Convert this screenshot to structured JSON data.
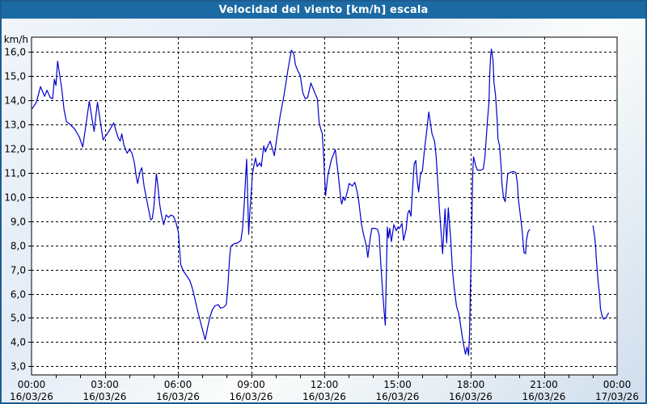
{
  "window": {
    "title": "Velocidad del viento [km/h] escala"
  },
  "colors": {
    "title_bar": "#1b6aa4",
    "outer_border": "#1d5c8f",
    "line": "#0000cd",
    "grid": "#000000",
    "plot_bg": "#ffffff",
    "text": "#000000"
  },
  "chart_data": {
    "type": "line",
    "title": "Velocidad del viento [km/h] escala",
    "ylabel": "km/h",
    "ylim": [
      2.66,
      16.6
    ],
    "grid": "dashed",
    "legend": "none",
    "y_ticks": [
      {
        "value": 16,
        "label": "16,0"
      },
      {
        "value": 15,
        "label": "15,0"
      },
      {
        "value": 14,
        "label": "14,0"
      },
      {
        "value": 13,
        "label": "13,0"
      },
      {
        "value": 12,
        "label": "12,0"
      },
      {
        "value": 11,
        "label": "11,0"
      },
      {
        "value": 10,
        "label": "10,0"
      },
      {
        "value": 9,
        "label": "9,0"
      },
      {
        "value": 8,
        "label": "8,0"
      },
      {
        "value": 7,
        "label": "7,0"
      },
      {
        "value": 6,
        "label": "6,0"
      },
      {
        "value": 5,
        "label": "5,0"
      },
      {
        "value": 4,
        "label": "4,0"
      },
      {
        "value": 3,
        "label": "3,0"
      }
    ],
    "x_axis": {
      "unit": "minutes since 00:00 of first day",
      "range": [
        0,
        1440
      ],
      "gridline_every_minutes": 180,
      "minor_tick_every_minutes": 60,
      "ticks": [
        {
          "t": 0,
          "time": "00:00",
          "date": "16/03/26"
        },
        {
          "t": 180,
          "time": "03:00",
          "date": "16/03/26"
        },
        {
          "t": 360,
          "time": "06:00",
          "date": "16/03/26"
        },
        {
          "t": 540,
          "time": "09:00",
          "date": "16/03/26"
        },
        {
          "t": 720,
          "time": "12:00",
          "date": "16/03/26"
        },
        {
          "t": 900,
          "time": "15:00",
          "date": "16/03/26"
        },
        {
          "t": 1080,
          "time": "18:00",
          "date": "16/03/26"
        },
        {
          "t": 1260,
          "time": "21:00",
          "date": "16/03/26"
        },
        {
          "t": 1440,
          "time": "00:00",
          "date": "17/03/26"
        }
      ]
    },
    "series": [
      {
        "name": "wind-speed-kmh",
        "segments": [
          [
            [
              2,
              13.65
            ],
            [
              12,
              13.9
            ],
            [
              22,
              14.55
            ],
            [
              32,
              14.15
            ],
            [
              38,
              14.4
            ],
            [
              46,
              14.1
            ],
            [
              52,
              14.05
            ],
            [
              56,
              14.85
            ],
            [
              60,
              14.6
            ],
            [
              64,
              15.6
            ],
            [
              70,
              14.95
            ],
            [
              74,
              14.5
            ],
            [
              80,
              13.6
            ],
            [
              86,
              13.1
            ],
            [
              94,
              13.0
            ],
            [
              106,
              12.8
            ],
            [
              118,
              12.45
            ],
            [
              126,
              12.05
            ],
            [
              134,
              13.0
            ],
            [
              142,
              13.95
            ],
            [
              148,
              13.3
            ],
            [
              154,
              12.7
            ],
            [
              158,
              13.3
            ],
            [
              162,
              13.9
            ],
            [
              170,
              13.0
            ],
            [
              176,
              12.35
            ],
            [
              182,
              12.5
            ],
            [
              190,
              12.7
            ],
            [
              202,
              13.05
            ],
            [
              208,
              12.7
            ],
            [
              214,
              12.4
            ],
            [
              218,
              12.3
            ],
            [
              222,
              12.6
            ],
            [
              227,
              12.15
            ],
            [
              235,
              11.8
            ],
            [
              241,
              11.95
            ],
            [
              247,
              11.8
            ],
            [
              253,
              11.4
            ],
            [
              257,
              10.9
            ],
            [
              261,
              10.55
            ],
            [
              267,
              11.05
            ],
            [
              271,
              11.2
            ],
            [
              277,
              10.4
            ],
            [
              283,
              9.9
            ],
            [
              287,
              9.55
            ],
            [
              293,
              9.05
            ],
            [
              297,
              9.1
            ],
            [
              301,
              9.6
            ],
            [
              307,
              10.95
            ],
            [
              311,
              10.4
            ],
            [
              315,
              9.7
            ],
            [
              319,
              9.3
            ],
            [
              325,
              8.85
            ],
            [
              331,
              9.25
            ],
            [
              337,
              9.15
            ],
            [
              343,
              9.25
            ],
            [
              349,
              9.2
            ],
            [
              355,
              8.95
            ],
            [
              361,
              8.55
            ],
            [
              367,
              7.2
            ],
            [
              373,
              6.95
            ],
            [
              381,
              6.75
            ],
            [
              389,
              6.55
            ],
            [
              395,
              6.25
            ],
            [
              401,
              5.85
            ],
            [
              407,
              5.4
            ],
            [
              413,
              5.0
            ],
            [
              419,
              4.6
            ],
            [
              427,
              4.1
            ],
            [
              433,
              4.6
            ],
            [
              439,
              5.05
            ],
            [
              445,
              5.35
            ],
            [
              451,
              5.5
            ],
            [
              459,
              5.55
            ],
            [
              465,
              5.4
            ],
            [
              473,
              5.45
            ],
            [
              479,
              5.55
            ],
            [
              483,
              6.3
            ],
            [
              487,
              7.5
            ],
            [
              490,
              7.95
            ],
            [
              497,
              8.05
            ],
            [
              507,
              8.1
            ],
            [
              515,
              8.2
            ],
            [
              519,
              8.7
            ],
            [
              523,
              9.7
            ],
            [
              527,
              11.0
            ],
            [
              529,
              11.55
            ],
            [
              534,
              8.45
            ],
            [
              537,
              9.4
            ],
            [
              541,
              10.3
            ],
            [
              543,
              10.9
            ],
            [
              547,
              11.3
            ],
            [
              551,
              11.6
            ],
            [
              555,
              11.25
            ],
            [
              561,
              11.4
            ],
            [
              565,
              11.25
            ],
            [
              571,
              12.1
            ],
            [
              575,
              11.85
            ],
            [
              581,
              12.1
            ],
            [
              587,
              12.3
            ],
            [
              593,
              11.95
            ],
            [
              597,
              11.7
            ],
            [
              603,
              12.4
            ],
            [
              611,
              13.3
            ],
            [
              621,
              14.2
            ],
            [
              631,
              15.3
            ],
            [
              639,
              16.05
            ],
            [
              645,
              15.9
            ],
            [
              649,
              15.45
            ],
            [
              655,
              15.2
            ],
            [
              661,
              15.0
            ],
            [
              667,
              14.3
            ],
            [
              673,
              14.05
            ],
            [
              679,
              14.1
            ],
            [
              687,
              14.7
            ],
            [
              693,
              14.45
            ],
            [
              699,
              14.2
            ],
            [
              703,
              14.05
            ],
            [
              707,
              13.1
            ],
            [
              711,
              12.8
            ],
            [
              715,
              12.6
            ],
            [
              719,
              11.5
            ],
            [
              723,
              10.05
            ],
            [
              729,
              10.9
            ],
            [
              737,
              11.5
            ],
            [
              747,
              11.95
            ],
            [
              755,
              10.8
            ],
            [
              761,
              9.85
            ],
            [
              763,
              9.7
            ],
            [
              767,
              10.0
            ],
            [
              771,
              9.85
            ],
            [
              777,
              10.25
            ],
            [
              781,
              10.55
            ],
            [
              789,
              10.45
            ],
            [
              795,
              10.6
            ],
            [
              801,
              10.2
            ],
            [
              805,
              9.8
            ],
            [
              811,
              8.9
            ],
            [
              817,
              8.4
            ],
            [
              823,
              8.0
            ],
            [
              827,
              7.5
            ],
            [
              833,
              8.3
            ],
            [
              837,
              8.7
            ],
            [
              845,
              8.7
            ],
            [
              851,
              8.65
            ],
            [
              855,
              8.4
            ],
            [
              859,
              7.2
            ],
            [
              863,
              6.2
            ],
            [
              867,
              5.3
            ],
            [
              870,
              4.7
            ],
            [
              875,
              8.75
            ],
            [
              878,
              8.3
            ],
            [
              881,
              8.7
            ],
            [
              885,
              8.15
            ],
            [
              891,
              8.85
            ],
            [
              897,
              8.6
            ],
            [
              901,
              8.75
            ],
            [
              905,
              8.7
            ],
            [
              911,
              8.9
            ],
            [
              915,
              8.2
            ],
            [
              921,
              8.65
            ],
            [
              925,
              9.3
            ],
            [
              929,
              9.45
            ],
            [
              933,
              9.2
            ],
            [
              937,
              10.3
            ],
            [
              941,
              11.35
            ],
            [
              945,
              11.5
            ],
            [
              949,
              10.6
            ],
            [
              952,
              10.2
            ],
            [
              957,
              11.0
            ],
            [
              961,
              11.05
            ],
            [
              967,
              12.05
            ],
            [
              971,
              12.6
            ],
            [
              977,
              13.5
            ],
            [
              985,
              12.6
            ],
            [
              991,
              12.3
            ],
            [
              995,
              11.65
            ],
            [
              999,
              10.6
            ],
            [
              1003,
              9.5
            ],
            [
              1007,
              8.6
            ],
            [
              1011,
              7.65
            ],
            [
              1017,
              9.5
            ],
            [
              1021,
              8.1
            ],
            [
              1025,
              9.55
            ],
            [
              1031,
              8.2
            ],
            [
              1035,
              7.0
            ],
            [
              1039,
              6.3
            ],
            [
              1045,
              5.5
            ],
            [
              1051,
              5.15
            ],
            [
              1057,
              4.5
            ],
            [
              1061,
              4.05
            ],
            [
              1067,
              3.5
            ],
            [
              1071,
              3.8
            ],
            [
              1075,
              3.45
            ],
            [
              1077,
              4.3
            ],
            [
              1079,
              6.0
            ],
            [
              1081,
              7.4
            ],
            [
              1083,
              9.05
            ],
            [
              1085,
              11.0
            ],
            [
              1087,
              11.65
            ],
            [
              1093,
              11.25
            ],
            [
              1097,
              11.1
            ],
            [
              1105,
              11.1
            ],
            [
              1111,
              11.15
            ],
            [
              1115,
              11.65
            ],
            [
              1117,
              12.1
            ],
            [
              1121,
              13.1
            ],
            [
              1125,
              13.9
            ],
            [
              1127,
              15.1
            ],
            [
              1129,
              15.8
            ],
            [
              1131,
              16.1
            ],
            [
              1135,
              15.6
            ],
            [
              1137,
              14.75
            ],
            [
              1141,
              14.2
            ],
            [
              1145,
              13.2
            ],
            [
              1147,
              12.4
            ],
            [
              1151,
              12.1
            ],
            [
              1155,
              11.2
            ],
            [
              1157,
              10.5
            ],
            [
              1161,
              9.95
            ],
            [
              1165,
              9.8
            ],
            [
              1171,
              10.95
            ],
            [
              1177,
              11.0
            ],
            [
              1185,
              11.05
            ],
            [
              1191,
              11.0
            ],
            [
              1195,
              10.55
            ],
            [
              1197,
              9.95
            ],
            [
              1201,
              9.4
            ],
            [
              1205,
              8.85
            ],
            [
              1207,
              8.5
            ],
            [
              1211,
              7.7
            ],
            [
              1215,
              7.65
            ],
            [
              1217,
              8.2
            ],
            [
              1221,
              8.55
            ],
            [
              1225,
              8.65
            ]
          ],
          [
            [
              1381,
              8.8
            ],
            [
              1385,
              8.35
            ],
            [
              1387,
              8.0
            ],
            [
              1389,
              7.4
            ],
            [
              1393,
              6.55
            ],
            [
              1397,
              5.95
            ],
            [
              1399,
              5.4
            ],
            [
              1403,
              5.1
            ],
            [
              1407,
              4.95
            ],
            [
              1413,
              5.0
            ],
            [
              1417,
              5.15
            ],
            [
              1419,
              5.2
            ]
          ]
        ]
      }
    ]
  }
}
